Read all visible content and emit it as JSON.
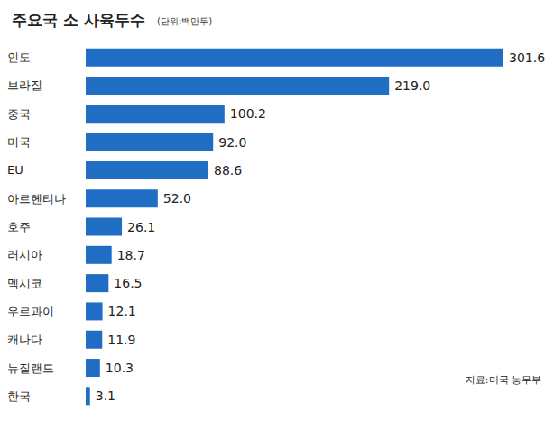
{
  "chart_data": {
    "type": "bar",
    "orientation": "horizontal",
    "title": "주요국 소 사육두수",
    "subtitle": "(단위:백만두)",
    "annotation": "자료:미국 농무부",
    "categories": [
      "인도",
      "브라질",
      "중국",
      "미국",
      "EU",
      "아르헨티나",
      "호주",
      "러시아",
      "멕시코",
      "우르과이",
      "캐나다",
      "뉴질랜드",
      "한국"
    ],
    "values": [
      301.6,
      219.0,
      100.2,
      92.0,
      88.6,
      52.0,
      26.1,
      18.7,
      16.5,
      12.1,
      11.9,
      10.3,
      3.1
    ],
    "value_labels": [
      "301.6",
      "219.0",
      "100.2",
      "92.0",
      "88.6",
      "52.0",
      "26.1",
      "18.7",
      "16.5",
      "12.1",
      "11.9",
      "10.3",
      "3.1"
    ],
    "color": "#1f6ec4",
    "xlim": [
      0,
      301.6
    ],
    "data_labels": true,
    "tick_labels": "y",
    "grid": false
  }
}
